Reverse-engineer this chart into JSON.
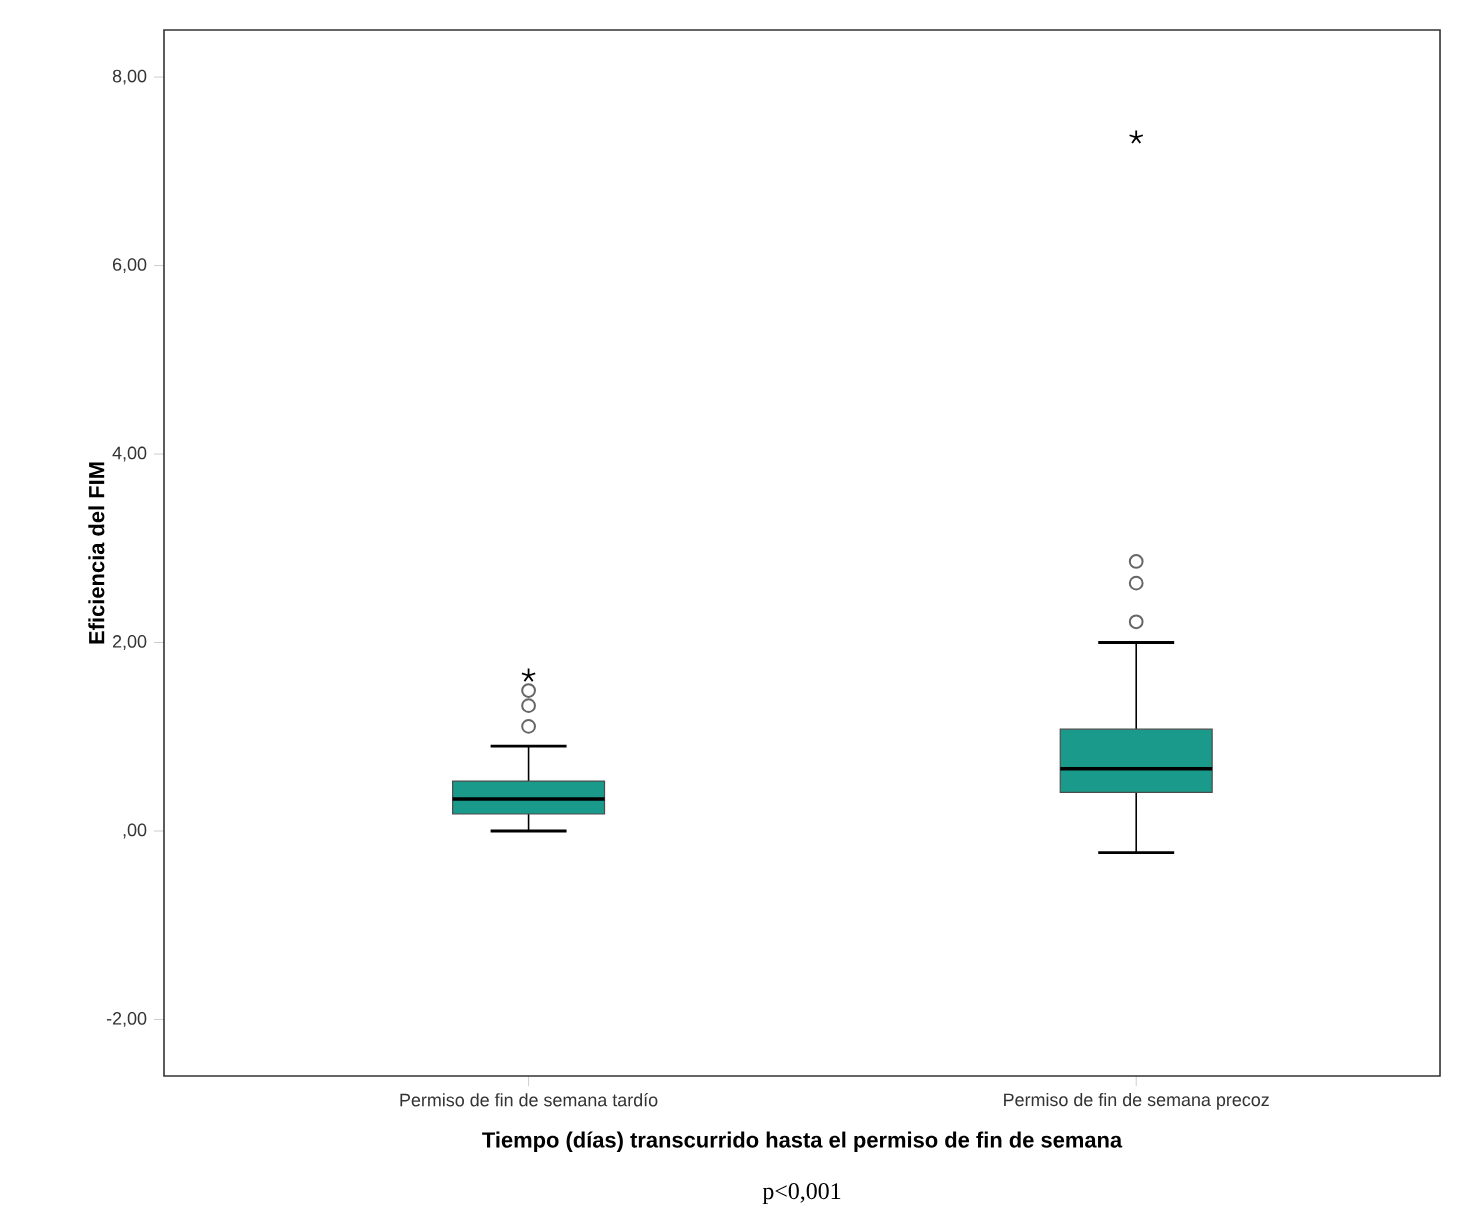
{
  "chart_data": {
    "type": "box",
    "xlabel": "Tiempo (días) transcurrido hasta el permiso de fin de semana",
    "ylabel": "Eficiencia del FIM",
    "categories": [
      "Permiso de fin de semana tardío",
      "Permiso de fin de semana precoz"
    ],
    "boxes": [
      {
        "low": 0,
        "q1": 0.18,
        "median": 0.34,
        "q3": 0.53,
        "high": 0.9,
        "outliers": [
          1.11,
          1.33,
          1.49,
          1.65
        ]
      },
      {
        "low": -0.23,
        "q1": 0.41,
        "median": 0.66,
        "q3": 1.08,
        "high": 2.0,
        "outliers": [
          2.22,
          2.63,
          2.86,
          7.36
        ]
      }
    ],
    "color": "#1a9a8a",
    "ylim": [
      -2.6,
      8.5
    ],
    "yticks": [
      {
        "value": -2,
        "label": "-2,00"
      },
      {
        "value": 0,
        "label": ",00"
      },
      {
        "value": 2,
        "label": "2,00"
      },
      {
        "value": 4,
        "label": "4,00"
      },
      {
        "value": 6,
        "label": "6,00"
      },
      {
        "value": 8,
        "label": "8,00"
      }
    ],
    "grid": false,
    "annotations": [
      "p<0,001"
    ]
  }
}
